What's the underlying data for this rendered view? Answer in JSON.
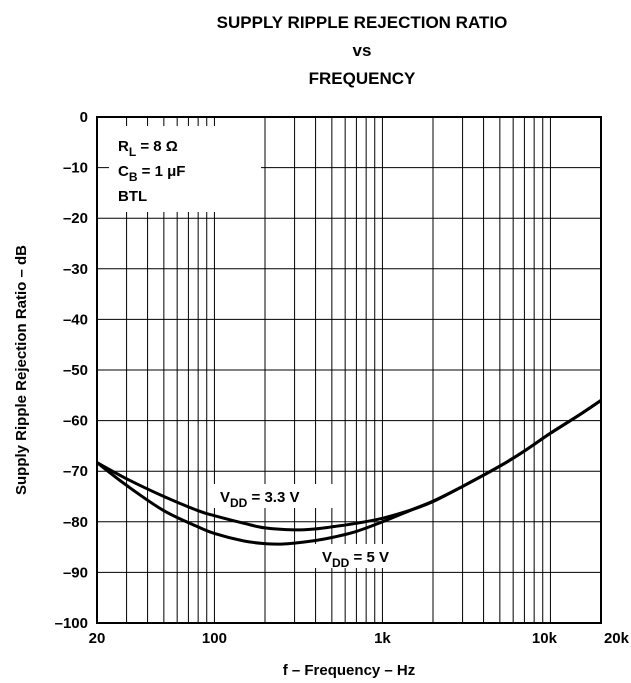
{
  "chart_data": {
    "type": "line",
    "title": [
      "SUPPLY RIPPLE REJECTION RATIO",
      "vs",
      "FREQUENCY"
    ],
    "xlabel": "f – Frequency – Hz",
    "ylabel": "Supply Ripple Rejection Ratio – dB",
    "xscale": "log",
    "xlim": [
      20,
      20000
    ],
    "ylim": [
      -100,
      0
    ],
    "grid": true,
    "x_ticks": [
      {
        "value": 20,
        "label": "20"
      },
      {
        "value": 100,
        "label": "100"
      },
      {
        "value": 1000,
        "label": "1k"
      },
      {
        "value": 10000,
        "label": "10k"
      },
      {
        "value": 20000,
        "label": "20k"
      }
    ],
    "y_ticks": [
      {
        "value": 0,
        "label": "0"
      },
      {
        "value": -10,
        "label": "–10"
      },
      {
        "value": -20,
        "label": "–20"
      },
      {
        "value": -30,
        "label": "–30"
      },
      {
        "value": -40,
        "label": "–40"
      },
      {
        "value": -50,
        "label": "–50"
      },
      {
        "value": -60,
        "label": "–60"
      },
      {
        "value": -70,
        "label": "–70"
      },
      {
        "value": -80,
        "label": "–80"
      },
      {
        "value": -90,
        "label": "–90"
      },
      {
        "value": -100,
        "label": "–100"
      }
    ],
    "conditions": [
      {
        "main": "R",
        "sub": "L",
        "rest": " = 8 Ω"
      },
      {
        "main": "C",
        "sub": "B",
        "rest": " = 1 μF"
      },
      {
        "main": "BTL",
        "sub": "",
        "rest": ""
      }
    ],
    "series": [
      {
        "name_main": "V",
        "name_sub": "DD",
        "name_rest": " = 3.3 V",
        "x": [
          20,
          30,
          50,
          80,
          100,
          150,
          200,
          300,
          400,
          500,
          700,
          1000,
          1500,
          2000,
          3000,
          5000,
          7000,
          10000,
          15000,
          20000
        ],
        "y": [
          -68.3,
          -71.5,
          -75.0,
          -77.8,
          -78.8,
          -80.3,
          -81.2,
          -81.6,
          -81.4,
          -81.0,
          -80.3,
          -79.3,
          -77.6,
          -76.0,
          -73.0,
          -69.0,
          -66.0,
          -62.5,
          -58.8,
          -56.0
        ]
      },
      {
        "name_main": "V",
        "name_sub": "DD",
        "name_rest": " = 5 V",
        "x": [
          20,
          30,
          50,
          80,
          100,
          150,
          200,
          250,
          300,
          400,
          500,
          700,
          1000,
          1500,
          2000,
          3000,
          5000,
          7000,
          10000,
          15000,
          20000
        ],
        "y": [
          -68.3,
          -72.8,
          -77.8,
          -81.0,
          -82.3,
          -83.8,
          -84.3,
          -84.4,
          -84.2,
          -83.7,
          -83.1,
          -81.9,
          -80.0,
          -77.6,
          -75.9,
          -73.0,
          -69.0,
          -66.0,
          -62.5,
          -58.8,
          -56.0
        ]
      }
    ]
  }
}
